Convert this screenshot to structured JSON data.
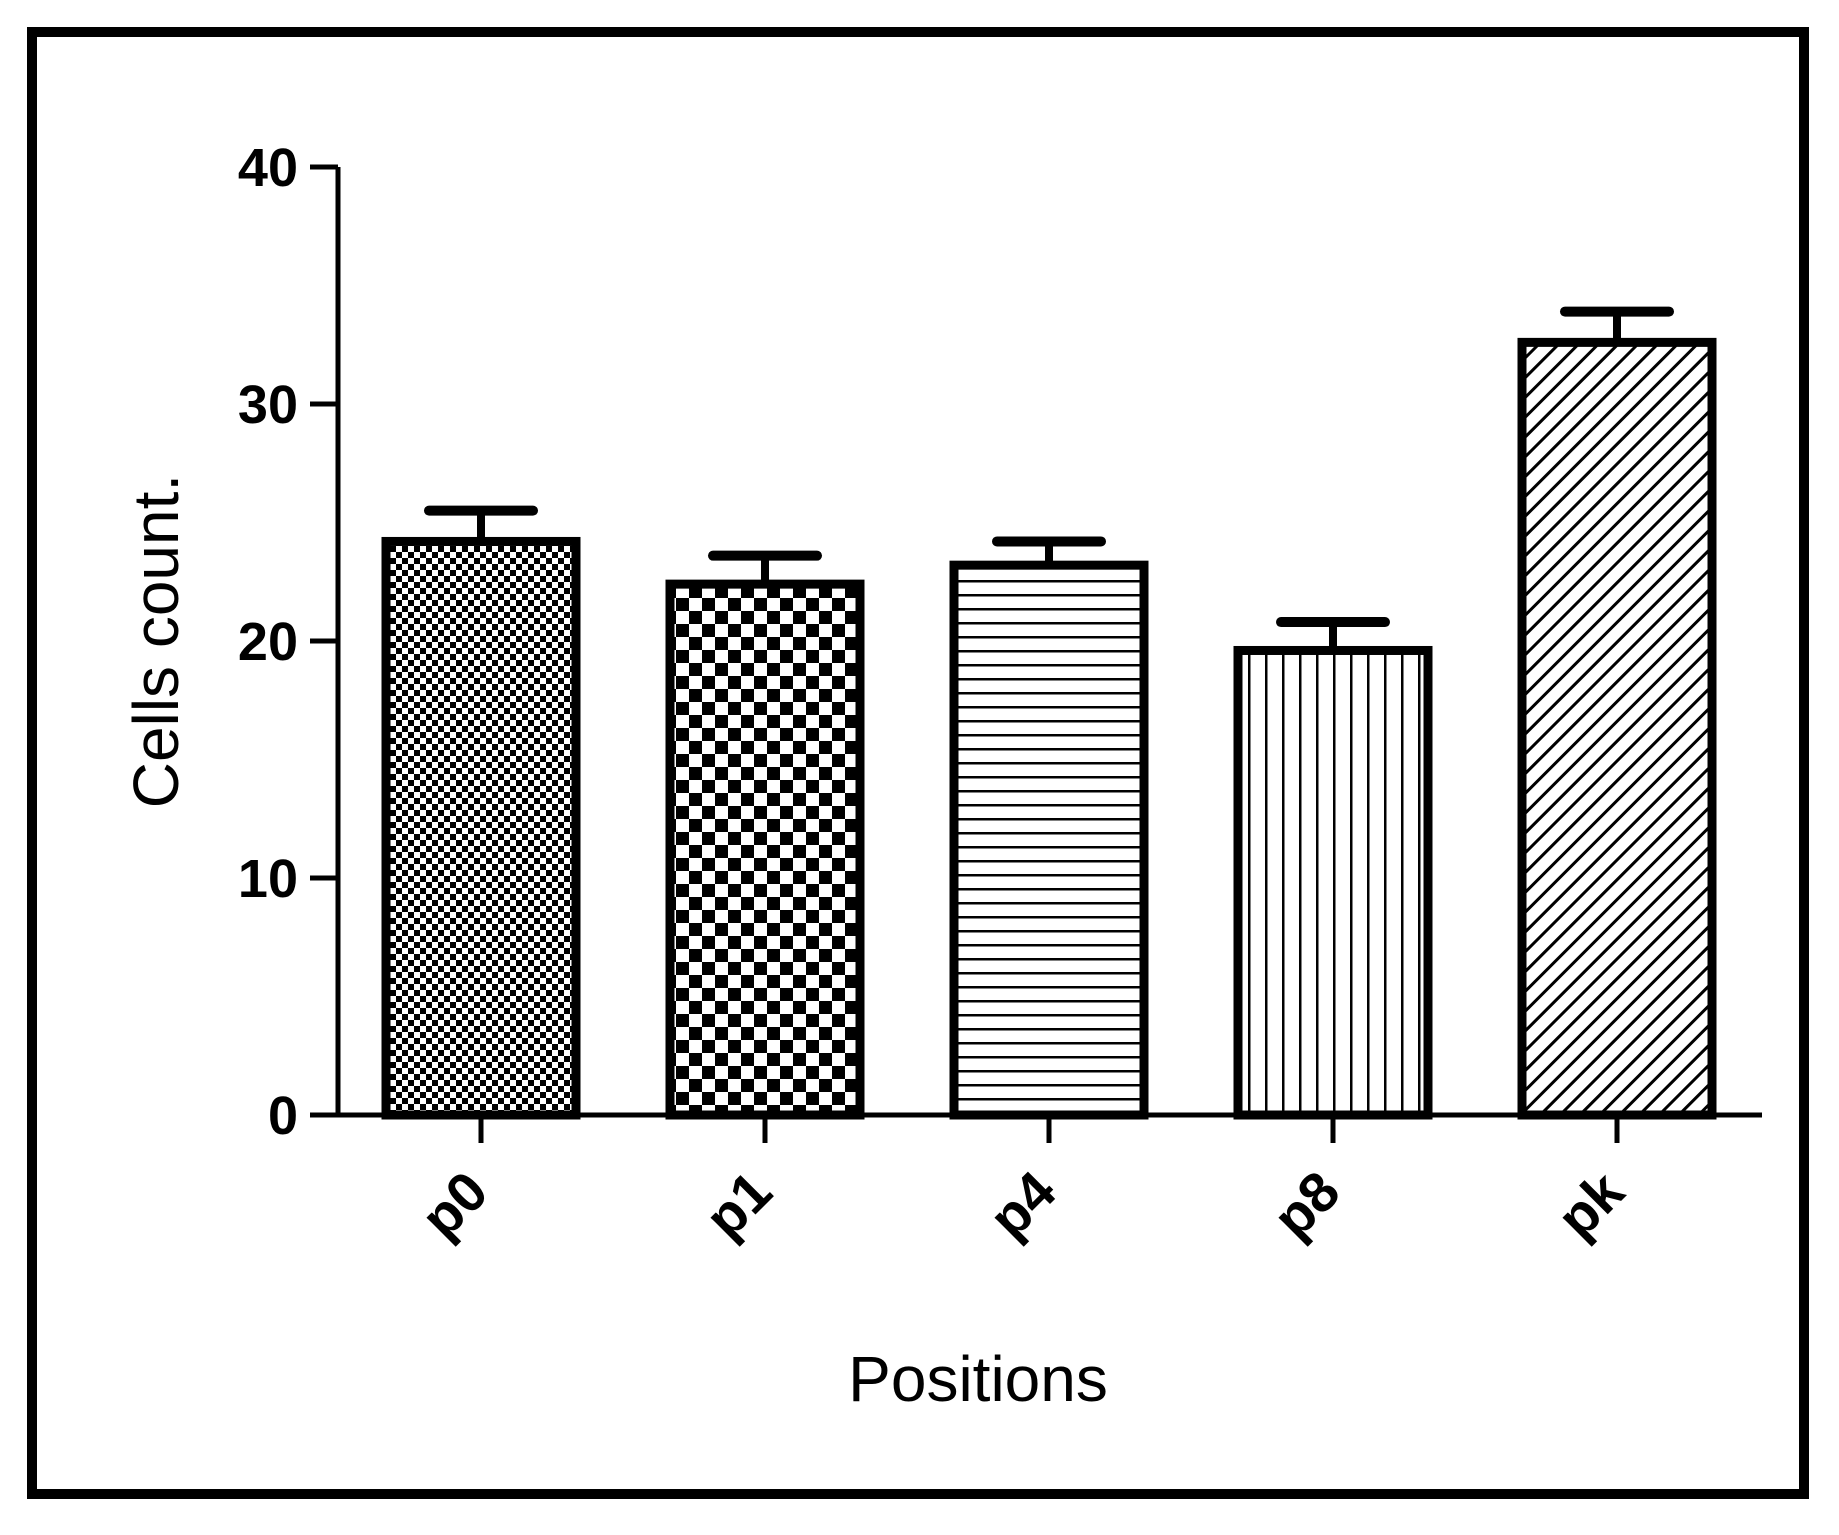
{
  "chart_data": {
    "type": "bar",
    "title": "",
    "xlabel": "Positions",
    "ylabel": "Cells count.",
    "categories": [
      "p0",
      "p1",
      "p4",
      "p8",
      "pk"
    ],
    "values": [
      24.2,
      22.4,
      23.2,
      19.6,
      32.6
    ],
    "errors": [
      1.3,
      1.2,
      1.0,
      1.2,
      1.3
    ],
    "patterns": [
      "fine-checker",
      "checker",
      "horizontal-lines",
      "vertical-lines",
      "diagonal-hatch"
    ],
    "ylim": [
      0,
      40
    ],
    "yticks": [
      "0",
      "10",
      "20",
      "30",
      "40"
    ],
    "ytick_values": [
      0,
      10,
      20,
      30,
      40
    ],
    "grid": false,
    "legend": false,
    "colors": {
      "stroke": "#000000",
      "background": "#ffffff"
    }
  }
}
